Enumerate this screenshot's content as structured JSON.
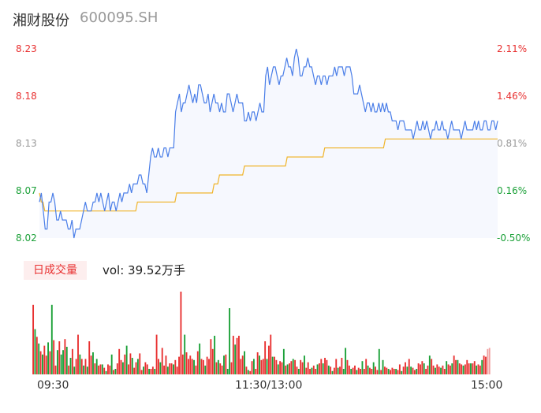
{
  "header": {
    "name": "湘财股份",
    "code": "600095.SH"
  },
  "volume_panel": {
    "badge": "日成交量",
    "vol_text": "vol: 39.52万手"
  },
  "colors": {
    "price_line": "#4a7ee8",
    "price_fill": "#f6f8fe",
    "avg_line": "#f0b429",
    "up": "#e83030",
    "down": "#1aa037",
    "neutral": "#999999"
  },
  "chart_data": [
    {
      "type": "line",
      "y_labels_left": [
        "8.23",
        "8.18",
        "8.13",
        "8.07",
        "8.02"
      ],
      "y_labels_right": [
        "2.11%",
        "1.46%",
        "0.81%",
        "0.16%",
        "-0.50%"
      ],
      "ylim": [
        8.02,
        8.23
      ],
      "x_labels": [
        "09:30",
        "11:30/13:00",
        "15:00"
      ],
      "series": [
        {
          "values": [
            8.06,
            8.07,
            8.05,
            8.03,
            8.03,
            8.06,
            8.06,
            8.07,
            8.06,
            8.04,
            8.04,
            8.05,
            8.04,
            8.04,
            8.04,
            8.03,
            8.03,
            8.04,
            8.02,
            8.03,
            8.03,
            8.03,
            8.04,
            8.05,
            8.06,
            8.05,
            8.05,
            8.05,
            8.06,
            8.06,
            8.07,
            8.06,
            8.07,
            8.06,
            8.05,
            8.06,
            8.07,
            8.05,
            8.06,
            8.06,
            8.05,
            8.06,
            8.07,
            8.06,
            8.07,
            8.07,
            8.07,
            8.08,
            8.07,
            8.08,
            8.08,
            8.08,
            8.09,
            8.09,
            8.08,
            8.08,
            8.07,
            8.09,
            8.11,
            8.12,
            8.11,
            8.11,
            8.12,
            8.11,
            8.11,
            8.12,
            8.12,
            8.11,
            8.12,
            8.12,
            8.12,
            8.16,
            8.17,
            8.18,
            8.16,
            8.17,
            8.17,
            8.18,
            8.19,
            8.18,
            8.17,
            8.18,
            8.17,
            8.19,
            8.19,
            8.18,
            8.17,
            8.17,
            8.18,
            8.16,
            8.17,
            8.18,
            8.17,
            8.17,
            8.16,
            8.17,
            8.16,
            8.16,
            8.18,
            8.18,
            8.17,
            8.16,
            8.17,
            8.18,
            8.17,
            8.17,
            8.17,
            8.15,
            8.15,
            8.16,
            8.15,
            8.16,
            8.16,
            8.15,
            8.16,
            8.17,
            8.16,
            8.16,
            8.2,
            8.21,
            8.19,
            8.2,
            8.21,
            8.21,
            8.2,
            8.19,
            8.2,
            8.2,
            8.21,
            8.22,
            8.21,
            8.21,
            8.2,
            8.22,
            8.23,
            8.22,
            8.2,
            8.2,
            8.21,
            8.21,
            8.22,
            8.21,
            8.21,
            8.2,
            8.19,
            8.2,
            8.2,
            8.19,
            8.2,
            8.2,
            8.19,
            8.2,
            8.2,
            8.2,
            8.21,
            8.2,
            8.21,
            8.21,
            8.21,
            8.2,
            8.21,
            8.21,
            8.21,
            8.2,
            8.18,
            8.18,
            8.18,
            8.19,
            8.18,
            8.17,
            8.16,
            8.17,
            8.17,
            8.16,
            8.17,
            8.16,
            8.16,
            8.17,
            8.16,
            8.17,
            8.16,
            8.17,
            8.16,
            8.16,
            8.15,
            8.15,
            8.15,
            8.14,
            8.15,
            8.15,
            8.15,
            8.14,
            8.14,
            8.14,
            8.14,
            8.13,
            8.14,
            8.15,
            8.14,
            8.14,
            8.15,
            8.14,
            8.15,
            8.14,
            8.13,
            8.14,
            8.14,
            8.15,
            8.14,
            8.14,
            8.15,
            8.14,
            8.14,
            8.13,
            8.14,
            8.15,
            8.14,
            8.14,
            8.14,
            8.14,
            8.13,
            8.14,
            8.15,
            8.14,
            8.14,
            8.14,
            8.14,
            8.15,
            8.14,
            8.15,
            8.14,
            8.14,
            8.15,
            8.15,
            8.14,
            8.14,
            8.15,
            8.15,
            8.14,
            8.15
          ]
        },
        {
          "values": [
            8.07,
            8.06,
            8.06,
            8.05,
            8.05,
            8.05,
            8.05,
            8.05,
            8.05,
            8.05,
            8.05,
            8.05,
            8.05,
            8.05,
            8.05,
            8.05,
            8.05,
            8.05,
            8.05,
            8.05,
            8.05,
            8.05,
            8.05,
            8.05,
            8.05,
            8.05,
            8.05,
            8.05,
            8.05,
            8.05,
            8.05,
            8.05,
            8.05,
            8.05,
            8.05,
            8.05,
            8.05,
            8.05,
            8.05,
            8.05,
            8.05,
            8.05,
            8.05,
            8.05,
            8.05,
            8.05,
            8.05,
            8.05,
            8.05,
            8.05,
            8.05,
            8.05,
            8.05,
            8.05,
            8.05,
            8.06,
            8.06,
            8.06,
            8.06,
            8.06,
            8.06,
            8.06,
            8.06,
            8.06,
            8.06,
            8.06,
            8.06,
            8.06,
            8.06,
            8.06,
            8.06,
            8.06,
            8.06,
            8.06,
            8.06,
            8.06,
            8.06,
            8.07,
            8.07,
            8.07,
            8.07,
            8.07,
            8.07,
            8.07,
            8.07,
            8.07,
            8.07,
            8.07,
            8.07,
            8.07,
            8.07,
            8.07,
            8.07,
            8.07,
            8.07,
            8.07,
            8.07,
            8.07,
            8.08,
            8.08,
            8.08,
            8.09,
            8.09,
            8.09,
            8.09,
            8.09,
            8.09,
            8.09,
            8.09,
            8.09,
            8.09,
            8.09,
            8.09,
            8.09,
            8.09,
            8.1,
            8.1,
            8.1,
            8.1,
            8.1,
            8.1,
            8.1,
            8.1,
            8.1,
            8.1,
            8.1,
            8.1,
            8.1,
            8.1,
            8.1,
            8.1,
            8.1,
            8.1,
            8.1,
            8.1,
            8.1,
            8.1,
            8.1,
            8.1,
            8.11,
            8.11,
            8.11,
            8.11,
            8.11,
            8.11,
            8.11,
            8.11,
            8.11,
            8.11,
            8.11,
            8.11,
            8.11,
            8.11,
            8.11,
            8.11,
            8.11,
            8.11,
            8.11,
            8.11,
            8.11,
            8.12,
            8.12,
            8.12,
            8.12,
            8.12,
            8.12,
            8.12,
            8.12,
            8.12,
            8.12,
            8.12,
            8.12,
            8.12,
            8.12,
            8.12,
            8.12,
            8.12,
            8.12,
            8.12,
            8.12,
            8.12,
            8.12,
            8.12,
            8.12,
            8.12,
            8.12,
            8.12,
            8.12,
            8.12,
            8.12,
            8.12,
            8.12,
            8.12,
            8.12,
            8.13,
            8.13,
            8.13,
            8.13,
            8.13,
            8.13,
            8.13,
            8.13,
            8.13,
            8.13,
            8.13,
            8.13,
            8.13,
            8.13,
            8.13,
            8.13,
            8.13,
            8.13,
            8.13,
            8.13,
            8.13,
            8.13,
            8.13,
            8.13,
            8.13,
            8.13,
            8.13,
            8.13,
            8.13,
            8.13,
            8.13,
            8.13,
            8.13,
            8.13,
            8.13,
            8.13,
            8.13,
            8.13,
            8.13,
            8.13,
            8.13,
            8.13,
            8.13,
            8.13,
            8.13,
            8.13,
            8.13,
            8.13,
            8.13,
            8.13,
            8.13,
            8.13,
            8.13,
            8.13,
            8.13,
            8.13,
            8.13,
            8.13,
            8.13,
            8.13,
            8.13,
            8.13,
            8.13,
            8.13
          ]
        }
      ]
    },
    {
      "type": "bar",
      "values": [
        0.63,
        0.41,
        0.34,
        0.28,
        0.21,
        0.18,
        0.26,
        0.17,
        0.29,
        0.21,
        0.63,
        0.31,
        0.08,
        0.22,
        0.3,
        0.18,
        0.22,
        0.32,
        0.25,
        0.08,
        0.15,
        0.23,
        0.07,
        0.14,
        0.36,
        0.18,
        0.14,
        0.08,
        0.14,
        0.07,
        0.3,
        0.17,
        0.2,
        0.1,
        0.14,
        0.08,
        0.09,
        0.09,
        0.06,
        0.03,
        0.09,
        0.08,
        0.18,
        0.04,
        0.05,
        0.1,
        0.23,
        0.13,
        0.11,
        0.18,
        0.26,
        0.09,
        0.19,
        0.15,
        0.06,
        0.11,
        0.14,
        0.19,
        0.04,
        0.07,
        0.11,
        0.09,
        0.05,
        0.05,
        0.07,
        0.05,
        0.36,
        0.14,
        0.11,
        0.24,
        0.08,
        0.17,
        0.07,
        0.1,
        0.1,
        0.09,
        0.13,
        0.07,
        0.16,
        0.75,
        0.18,
        0.36,
        0.2,
        0.14,
        0.17,
        0.14,
        0.13,
        0.08,
        0.21,
        0.28,
        0.14,
        0.13,
        0.08,
        0.16,
        0.14,
        0.32,
        0.23,
        0.35,
        0.11,
        0.13,
        0.1,
        0.08,
        0.17,
        0.18,
        0.05,
        0.6,
        0.11,
        0.35,
        0.27,
        0.33,
        0.35,
        0.14,
        0.17,
        0.21,
        0.07,
        0.04,
        0.03,
        0.12,
        0.14,
        0.05,
        0.2,
        0.17,
        0.13,
        0.14,
        0.3,
        0.14,
        0.26,
        0.36,
        0.16,
        0.16,
        0.13,
        0.09,
        0.12,
        0.11,
        0.23,
        0.08,
        0.09,
        0.1,
        0.12,
        0.14,
        0.13,
        0.07,
        0.05,
        0.13,
        0.11,
        0.17,
        0.06,
        0.11,
        0.05,
        0.06,
        0.08,
        0.05,
        0.09,
        0.1,
        0.14,
        0.1,
        0.15,
        0.13,
        0.08,
        0.07,
        0.03,
        0.06,
        0.14,
        0.06,
        0.07,
        0.15,
        0.05,
        0.24,
        0.13,
        0.08,
        0.05,
        0.06,
        0.08,
        0.04,
        0.06,
        0.05,
        0.12,
        0.05,
        0.14,
        0.08,
        0.06,
        0.05,
        0.11,
        0.07,
        0.04,
        0.23,
        0.04,
        0.13,
        0.07,
        0.06,
        0.05,
        0.04,
        0.06,
        0.05,
        0.05,
        0.04,
        0.09,
        0.03,
        0.07,
        0.11,
        0.07,
        0.14,
        0.07,
        0.06,
        0.04,
        0.05,
        0.1,
        0.09,
        0.12,
        0.1,
        0.05,
        0.08,
        0.17,
        0.14,
        0.08,
        0.06,
        0.09,
        0.07,
        0.06,
        0.08,
        0.05,
        0.12,
        0.09,
        0.08,
        0.1,
        0.17,
        0.13,
        0.13,
        0.1,
        0.09,
        0.08,
        0.09,
        0.13,
        0.1,
        0.1,
        0.1,
        0.12,
        0.08,
        0.09,
        0.08,
        0.13,
        0.17,
        0.16,
        0.23,
        0.24
      ],
      "sides": [
        "u",
        "d",
        "u",
        "d",
        "u",
        "d",
        "u",
        "u",
        "d",
        "u",
        "d",
        "u",
        "u",
        "d",
        "u",
        "d",
        "d",
        "u",
        "d",
        "u",
        "d",
        "u",
        "d",
        "u",
        "u",
        "d",
        "u",
        "d",
        "u",
        "d",
        "u",
        "u",
        "d",
        "u",
        "d",
        "u",
        "u",
        "d",
        "u",
        "d",
        "u",
        "u",
        "d",
        "u",
        "d",
        "u",
        "u",
        "u",
        "d",
        "u",
        "d",
        "u",
        "u",
        "d",
        "u",
        "u",
        "d",
        "u",
        "u",
        "d",
        "u",
        "u",
        "d",
        "u",
        "u",
        "d",
        "u",
        "u",
        "d",
        "u",
        "u",
        "u",
        "d",
        "u",
        "u",
        "d",
        "u",
        "u",
        "u",
        "u",
        "u",
        "d",
        "u",
        "u",
        "u",
        "u",
        "d",
        "u",
        "u",
        "d",
        "u",
        "u",
        "d",
        "u",
        "u",
        "u",
        "u",
        "d",
        "u",
        "d",
        "u",
        "u",
        "d",
        "u",
        "d",
        "d",
        "u",
        "u",
        "d",
        "u",
        "u",
        "u",
        "u",
        "d",
        "u",
        "d",
        "u",
        "u",
        "d",
        "u",
        "u",
        "d",
        "u",
        "u",
        "u",
        "d",
        "u",
        "u",
        "d",
        "u",
        "u",
        "d",
        "u",
        "u",
        "d",
        "u",
        "d",
        "u",
        "u",
        "d",
        "u",
        "u",
        "d",
        "u",
        "u",
        "d",
        "u",
        "u",
        "u",
        "d",
        "u",
        "u",
        "d",
        "u",
        "u",
        "d",
        "u",
        "u",
        "d",
        "u",
        "d",
        "u",
        "u",
        "d",
        "u",
        "u",
        "d",
        "d",
        "u",
        "u",
        "d",
        "u",
        "u",
        "d",
        "u",
        "u",
        "d",
        "u",
        "u",
        "d",
        "u",
        "u",
        "d",
        "u",
        "u",
        "d",
        "u",
        "d",
        "u",
        "u",
        "d",
        "u",
        "u",
        "u",
        "d",
        "u",
        "u",
        "d",
        "u",
        "u",
        "d",
        "u",
        "d",
        "u",
        "u",
        "d",
        "u",
        "u",
        "u",
        "d",
        "u",
        "u",
        "d",
        "u",
        "u",
        "d",
        "u",
        "u",
        "d",
        "u",
        "u",
        "d",
        "u",
        "u",
        "d",
        "u",
        "u",
        "d",
        "u",
        "u",
        "d",
        "u",
        "u",
        "u",
        "d",
        "u",
        "u",
        "d",
        "u",
        "u",
        "d",
        "u",
        "u",
        "n"
      ]
    }
  ]
}
